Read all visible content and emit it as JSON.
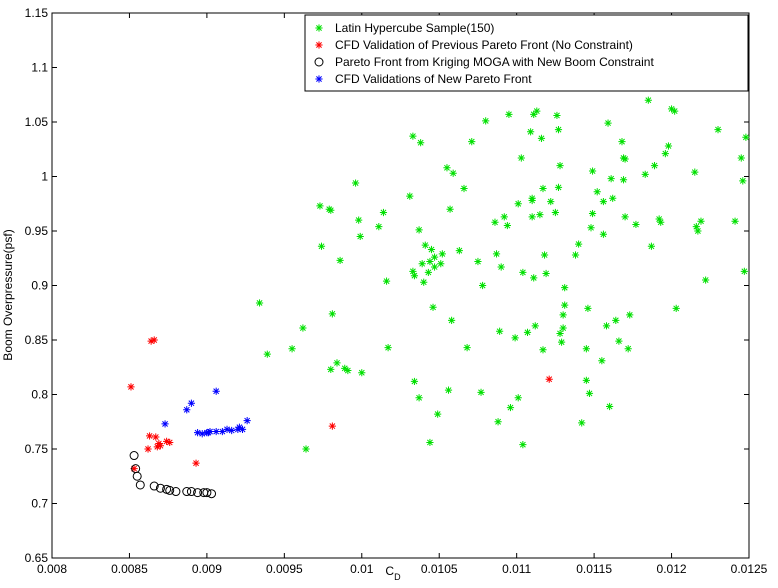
{
  "chart_data": {
    "type": "scatter",
    "xlabel": "C",
    "xlabel_sub": "D",
    "ylabel": "Boom Overpressure(psf)",
    "xlim": [
      0.008,
      0.0125
    ],
    "ylim": [
      0.65,
      1.15
    ],
    "xticks": [
      "0.008",
      "0.0085",
      "0.009",
      "0.0095",
      "0.01",
      "0.0105",
      "0.011",
      "0.0115",
      "0.012",
      "0.0125"
    ],
    "yticks": [
      "0.65",
      "0.7",
      "0.75",
      "0.8",
      "0.85",
      "0.9",
      "0.95",
      "1",
      "1.05",
      "1.1",
      "1.15"
    ],
    "xtick_values": [
      0.008,
      0.0085,
      0.009,
      0.0095,
      0.01,
      0.0105,
      0.011,
      0.0115,
      0.012,
      0.0125
    ],
    "ytick_values": [
      0.65,
      0.7,
      0.75,
      0.8,
      0.85,
      0.9,
      0.95,
      1.0,
      1.05,
      1.1,
      1.15
    ],
    "grid": false,
    "legend_position": "top-right",
    "series": [
      {
        "name": "Latin Hypercube Sample(150)",
        "color": "#00e000",
        "marker": "asterisk",
        "points": [
          [
            0.00934,
            0.884
          ],
          [
            0.00939,
            0.837
          ],
          [
            0.00955,
            0.842
          ],
          [
            0.00962,
            0.861
          ],
          [
            0.00964,
            0.75
          ],
          [
            0.00973,
            0.973
          ],
          [
            0.00974,
            0.936
          ],
          [
            0.00979,
            0.97
          ],
          [
            0.0098,
            0.969
          ],
          [
            0.00981,
            0.874
          ],
          [
            0.0098,
            0.823
          ],
          [
            0.00984,
            0.829
          ],
          [
            0.00986,
            0.923
          ],
          [
            0.00989,
            0.824
          ],
          [
            0.00991,
            0.822
          ],
          [
            0.00996,
            0.994
          ],
          [
            0.00998,
            0.96
          ],
          [
            0.00999,
            0.945
          ],
          [
            0.01,
            0.82
          ],
          [
            0.01011,
            0.954
          ],
          [
            0.01014,
            0.967
          ],
          [
            0.01016,
            0.904
          ],
          [
            0.01017,
            0.843
          ],
          [
            0.01031,
            0.982
          ],
          [
            0.01033,
            1.037
          ],
          [
            0.01033,
            0.913
          ],
          [
            0.01034,
            0.909
          ],
          [
            0.01034,
            0.812
          ],
          [
            0.01037,
            0.951
          ],
          [
            0.01037,
            0.797
          ],
          [
            0.01038,
            1.031
          ],
          [
            0.01039,
            0.92
          ],
          [
            0.0104,
            0.903
          ],
          [
            0.01041,
            0.937
          ],
          [
            0.01043,
            0.912
          ],
          [
            0.01044,
            0.922
          ],
          [
            0.01044,
            0.756
          ],
          [
            0.01045,
            0.933
          ],
          [
            0.01046,
            0.88
          ],
          [
            0.01047,
            0.926
          ],
          [
            0.01047,
            0.917
          ],
          [
            0.01049,
            0.782
          ],
          [
            0.01051,
            0.92
          ],
          [
            0.01052,
            0.929
          ],
          [
            0.01055,
            1.008
          ],
          [
            0.01056,
            0.804
          ],
          [
            0.01057,
            0.97
          ],
          [
            0.01058,
            0.868
          ],
          [
            0.01059,
            1.003
          ],
          [
            0.01063,
            0.932
          ],
          [
            0.01066,
            0.989
          ],
          [
            0.01068,
            0.843
          ],
          [
            0.01071,
            1.032
          ],
          [
            0.01075,
            0.922
          ],
          [
            0.01077,
            0.802
          ],
          [
            0.01078,
            0.9
          ],
          [
            0.0108,
            1.051
          ],
          [
            0.01086,
            0.958
          ],
          [
            0.01087,
            0.929
          ],
          [
            0.01088,
            0.775
          ],
          [
            0.01089,
            0.858
          ],
          [
            0.0109,
            0.917
          ],
          [
            0.01092,
            0.963
          ],
          [
            0.01094,
            0.955
          ],
          [
            0.01095,
            1.057
          ],
          [
            0.01096,
            0.788
          ],
          [
            0.01099,
            0.852
          ],
          [
            0.01101,
            0.975
          ],
          [
            0.01101,
            0.797
          ],
          [
            0.01103,
            1.017
          ],
          [
            0.01104,
            0.754
          ],
          [
            0.01104,
            0.912
          ],
          [
            0.01107,
            0.857
          ],
          [
            0.01109,
            1.041
          ],
          [
            0.0111,
            0.98
          ],
          [
            0.0111,
            0.978
          ],
          [
            0.0111,
            0.963
          ],
          [
            0.01111,
            0.907
          ],
          [
            0.01112,
            0.863
          ],
          [
            0.01111,
            1.057
          ],
          [
            0.01113,
            1.06
          ],
          [
            0.01115,
            0.965
          ],
          [
            0.01116,
            1.035
          ],
          [
            0.01117,
            0.989
          ],
          [
            0.01117,
            0.841
          ],
          [
            0.01118,
            0.928
          ],
          [
            0.01119,
            0.911
          ],
          [
            0.01122,
            0.977
          ],
          [
            0.01125,
            0.967
          ],
          [
            0.01126,
            1.056
          ],
          [
            0.01127,
            1.043
          ],
          [
            0.01127,
            0.99
          ],
          [
            0.01128,
            1.01
          ],
          [
            0.01128,
            0.856
          ],
          [
            0.01129,
            0.848
          ],
          [
            0.0113,
            0.861
          ],
          [
            0.0113,
            0.873
          ],
          [
            0.01131,
            0.882
          ],
          [
            0.01131,
            0.898
          ],
          [
            0.01138,
            0.928
          ],
          [
            0.0114,
            0.938
          ],
          [
            0.01142,
            0.774
          ],
          [
            0.01145,
            0.842
          ],
          [
            0.01145,
            0.813
          ],
          [
            0.01146,
            0.879
          ],
          [
            0.01147,
            0.801
          ],
          [
            0.01148,
            0.953
          ],
          [
            0.01149,
            0.966
          ],
          [
            0.01149,
            1.005
          ],
          [
            0.01152,
            0.986
          ],
          [
            0.01155,
            0.831
          ],
          [
            0.01156,
            0.977
          ],
          [
            0.01156,
            0.947
          ],
          [
            0.01158,
            0.863
          ],
          [
            0.01159,
            1.049
          ],
          [
            0.0116,
            0.789
          ],
          [
            0.01161,
            0.998
          ],
          [
            0.01162,
            0.98
          ],
          [
            0.01164,
            0.868
          ],
          [
            0.01166,
            0.849
          ],
          [
            0.01168,
            1.032
          ],
          [
            0.01169,
            1.017
          ],
          [
            0.01169,
            0.997
          ],
          [
            0.0117,
            0.963
          ],
          [
            0.0117,
            1.016
          ],
          [
            0.01172,
            0.842
          ],
          [
            0.01173,
            0.873
          ],
          [
            0.01177,
            0.956
          ],
          [
            0.01183,
            1.002
          ],
          [
            0.01185,
            1.07
          ],
          [
            0.01187,
            0.936
          ],
          [
            0.01189,
            1.01
          ],
          [
            0.01192,
            0.961
          ],
          [
            0.01193,
            0.958
          ],
          [
            0.01196,
            1.021
          ],
          [
            0.01198,
            1.028
          ],
          [
            0.012,
            1.062
          ],
          [
            0.01202,
            1.06
          ],
          [
            0.01203,
            0.879
          ],
          [
            0.01215,
            1.004
          ],
          [
            0.01216,
            0.954
          ],
          [
            0.01217,
            0.95
          ],
          [
            0.01219,
            0.959
          ],
          [
            0.01222,
            0.905
          ],
          [
            0.0123,
            1.043
          ],
          [
            0.01241,
            0.959
          ],
          [
            0.01245,
            1.017
          ],
          [
            0.01246,
            0.996
          ],
          [
            0.01247,
            0.913
          ],
          [
            0.01248,
            1.036
          ]
        ]
      },
      {
        "name": "CFD Validation of Previous Pareto Front (No Constraint)",
        "color": "#ff0000",
        "marker": "asterisk",
        "points": [
          [
            0.00851,
            0.807
          ],
          [
            0.00853,
            0.732
          ],
          [
            0.00862,
            0.75
          ],
          [
            0.00863,
            0.762
          ],
          [
            0.00864,
            0.849
          ],
          [
            0.00866,
            0.85
          ],
          [
            0.00867,
            0.761
          ],
          [
            0.00868,
            0.752
          ],
          [
            0.00869,
            0.755
          ],
          [
            0.0087,
            0.753
          ],
          [
            0.00874,
            0.757
          ],
          [
            0.00876,
            0.756
          ],
          [
            0.00893,
            0.737
          ],
          [
            0.00981,
            0.771
          ],
          [
            0.01121,
            0.814
          ]
        ]
      },
      {
        "name": "Pareto Front from Kriging MOGA with New Boom Constraint",
        "color": "#000000",
        "marker": "circle",
        "points": [
          [
            0.00853,
            0.744
          ],
          [
            0.00854,
            0.732
          ],
          [
            0.00855,
            0.725
          ],
          [
            0.00857,
            0.717
          ],
          [
            0.00866,
            0.716
          ],
          [
            0.0087,
            0.714
          ],
          [
            0.00874,
            0.713
          ],
          [
            0.00876,
            0.712
          ],
          [
            0.0088,
            0.711
          ],
          [
            0.00887,
            0.711
          ],
          [
            0.0089,
            0.711
          ],
          [
            0.00894,
            0.71
          ],
          [
            0.00898,
            0.71
          ],
          [
            0.009,
            0.71
          ],
          [
            0.00903,
            0.709
          ]
        ]
      },
      {
        "name": "CFD Validations of New Pareto Front",
        "color": "#0000ff",
        "marker": "asterisk",
        "points": [
          [
            0.00873,
            0.773
          ],
          [
            0.00887,
            0.786
          ],
          [
            0.0089,
            0.792
          ],
          [
            0.00894,
            0.765
          ],
          [
            0.00897,
            0.764
          ],
          [
            0.009,
            0.765
          ],
          [
            0.00901,
            0.765
          ],
          [
            0.00902,
            0.766
          ],
          [
            0.00906,
            0.803
          ],
          [
            0.00906,
            0.766
          ],
          [
            0.0091,
            0.766
          ],
          [
            0.00913,
            0.768
          ],
          [
            0.00916,
            0.767
          ],
          [
            0.0092,
            0.768
          ],
          [
            0.00921,
            0.77
          ],
          [
            0.00923,
            0.768
          ],
          [
            0.00926,
            0.776
          ]
        ]
      }
    ]
  }
}
